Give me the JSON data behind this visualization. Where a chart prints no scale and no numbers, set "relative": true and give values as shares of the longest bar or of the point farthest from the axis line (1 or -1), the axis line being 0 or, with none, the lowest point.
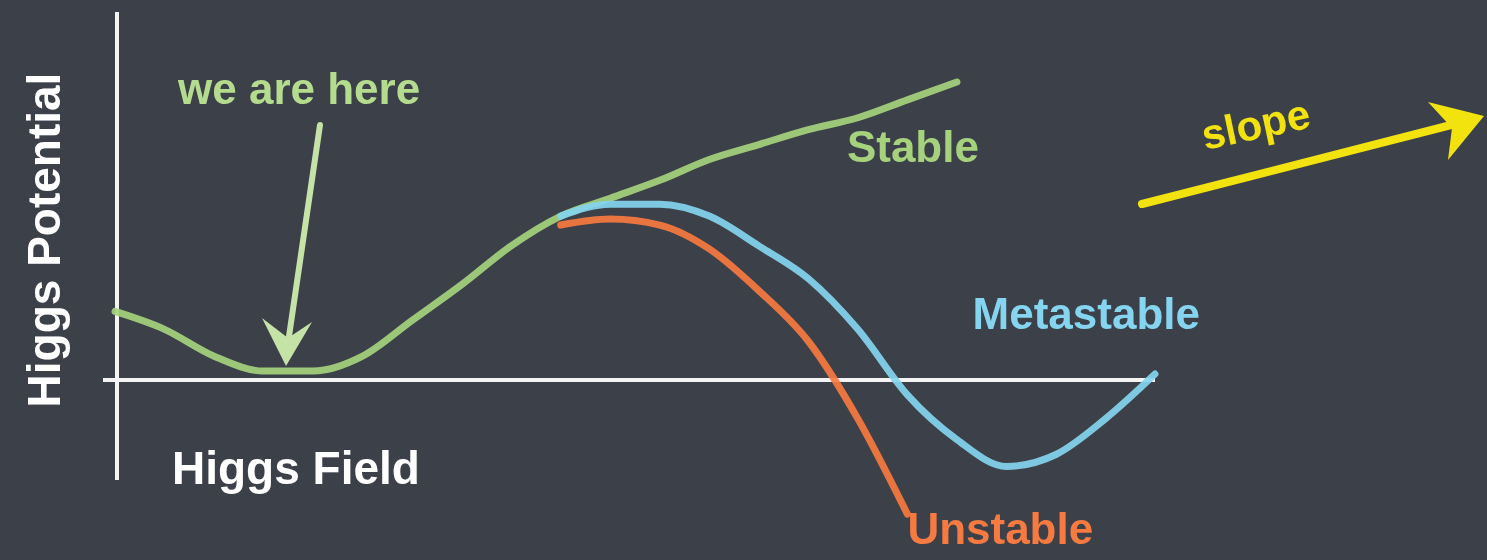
{
  "chart_data": {
    "type": "line",
    "relative": true,
    "xlabel": "Higgs Field",
    "ylabel": "Higgs Potential",
    "categories": [
      null,
      null,
      null,
      null,
      null,
      null,
      null,
      null,
      null,
      null,
      null,
      null,
      null,
      null,
      null,
      null,
      null,
      null,
      null,
      null,
      null,
      null
    ],
    "series": [
      {
        "name": "Stable",
        "color": "#a6d27d",
        "values": [
          0.23,
          0.17,
          0.08,
          0.03,
          0.03,
          0.08,
          0.2,
          0.32,
          0.45,
          0.55,
          0.61,
          0.67,
          0.74,
          0.79,
          0.84,
          0.88,
          0.94,
          1,
          null,
          null,
          null,
          null
        ]
      },
      {
        "name": "Metastable",
        "color": "#85d4f0",
        "values": [
          null,
          null,
          null,
          null,
          null,
          null,
          null,
          null,
          null,
          0.55,
          0.59,
          0.59,
          0.55,
          0.45,
          0.34,
          0.17,
          -0.05,
          -0.2,
          -0.29,
          -0.25,
          -0.13,
          0.02
        ]
      },
      {
        "name": "Unstable",
        "color": "#f77a40",
        "values": [
          null,
          null,
          null,
          null,
          null,
          null,
          null,
          null,
          null,
          0.52,
          0.54,
          0.52,
          0.44,
          0.3,
          0.13,
          -0.13,
          -0.45,
          null,
          null,
          null,
          null,
          null
        ]
      }
    ],
    "annotations": [
      "we are here",
      "slope"
    ],
    "marker": "none",
    "line_style": "solid"
  }
}
